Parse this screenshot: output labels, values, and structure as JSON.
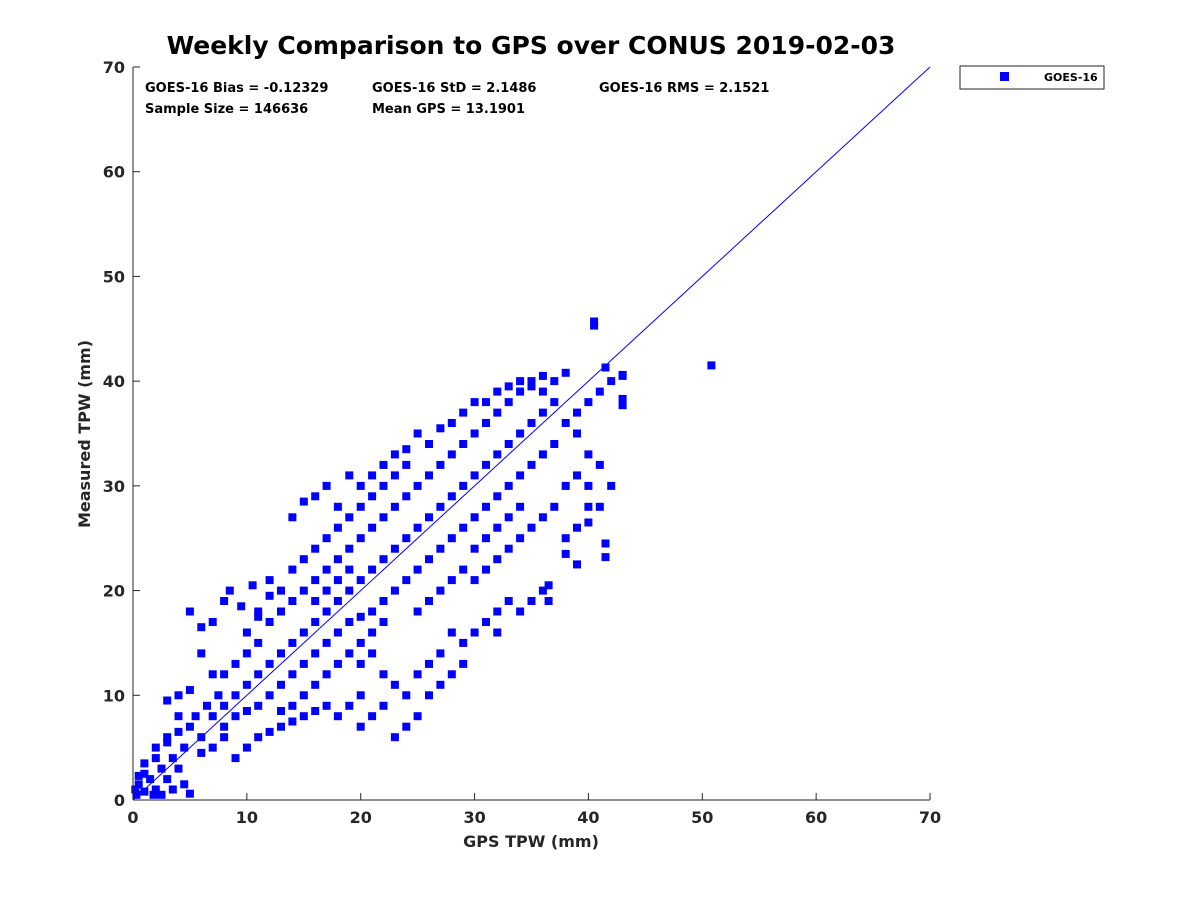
{
  "chart_data": {
    "type": "scatter",
    "title": "Weekly Comparison to GPS over CONUS 2019-02-03",
    "xlabel": "GPS TPW (mm)",
    "ylabel": "Measured TPW (mm)",
    "xlim": [
      0,
      70
    ],
    "ylim": [
      0,
      70
    ],
    "xticks": [
      "0",
      "10",
      "20",
      "30",
      "40",
      "50",
      "60",
      "70"
    ],
    "yticks": [
      "0",
      "10",
      "20",
      "30",
      "40",
      "50",
      "60",
      "70"
    ],
    "grid": false,
    "legend_position": "outside-top-right",
    "reference_line": {
      "x": [
        0,
        70
      ],
      "y": [
        0,
        70
      ]
    },
    "stats": {
      "bias": "GOES-16 Bias = -0.12329",
      "std": "GOES-16 StD = 2.1486",
      "rms": "GOES-16 RMS = 2.1521",
      "sample_size": "Sample Size = 146636",
      "mean_gps": "Mean GPS = 13.1901"
    },
    "series": [
      {
        "name": "GOES-16",
        "color": "#0000ff",
        "marker": "square",
        "points": [
          [
            0.3,
            0.5
          ],
          [
            0.5,
            1.5
          ],
          [
            1,
            0.8
          ],
          [
            1.5,
            2
          ],
          [
            2,
            1
          ],
          [
            2.5,
            3
          ],
          [
            3,
            2
          ],
          [
            3.5,
            4
          ],
          [
            4,
            3
          ],
          [
            4.5,
            5
          ],
          [
            1,
            2.5
          ],
          [
            2,
            4
          ],
          [
            3,
            5.5
          ],
          [
            4,
            6.5
          ],
          [
            5,
            7
          ],
          [
            5.5,
            8
          ],
          [
            6,
            6
          ],
          [
            6.5,
            9
          ],
          [
            7,
            8
          ],
          [
            7.5,
            10
          ],
          [
            2.5,
            0.5
          ],
          [
            3.5,
            1
          ],
          [
            4.5,
            1.5
          ],
          [
            5,
            0.6
          ],
          [
            3,
            9.5
          ],
          [
            4,
            10
          ],
          [
            5,
            10.5
          ],
          [
            6,
            4.5
          ],
          [
            7,
            5
          ],
          [
            8,
            6
          ],
          [
            8,
            9
          ],
          [
            9,
            10
          ],
          [
            10,
            11
          ],
          [
            11,
            12
          ],
          [
            12,
            13
          ],
          [
            13,
            14
          ],
          [
            14,
            15
          ],
          [
            15,
            16
          ],
          [
            16,
            17
          ],
          [
            17,
            18
          ],
          [
            8,
            12
          ],
          [
            9,
            13
          ],
          [
            10,
            14
          ],
          [
            11,
            15
          ],
          [
            12,
            17
          ],
          [
            13,
            18
          ],
          [
            14,
            19
          ],
          [
            15,
            20
          ],
          [
            16,
            21
          ],
          [
            17,
            22
          ],
          [
            8,
            7
          ],
          [
            9,
            8
          ],
          [
            10,
            8.5
          ],
          [
            11,
            9
          ],
          [
            12,
            10
          ],
          [
            13,
            11
          ],
          [
            14,
            12
          ],
          [
            15,
            13
          ],
          [
            16,
            14
          ],
          [
            17,
            15
          ],
          [
            6,
            16.5
          ],
          [
            7,
            17
          ],
          [
            8,
            19
          ],
          [
            8.5,
            20
          ],
          [
            9.5,
            18.5
          ],
          [
            10.5,
            20.5
          ],
          [
            11,
            17.5
          ],
          [
            12,
            19.5
          ],
          [
            9,
            4
          ],
          [
            10,
            5
          ],
          [
            11,
            6
          ],
          [
            12,
            6.5
          ],
          [
            13,
            7
          ],
          [
            14,
            7.5
          ],
          [
            15,
            8
          ],
          [
            16,
            8.5
          ],
          [
            17,
            9
          ],
          [
            18,
            8
          ],
          [
            19,
            9
          ],
          [
            20,
            10
          ],
          [
            18,
            19
          ],
          [
            19,
            20
          ],
          [
            20,
            21
          ],
          [
            21,
            22
          ],
          [
            22,
            23
          ],
          [
            23,
            24
          ],
          [
            24,
            25
          ],
          [
            25,
            26
          ],
          [
            26,
            27
          ],
          [
            27,
            28
          ],
          [
            18,
            23
          ],
          [
            19,
            24
          ],
          [
            20,
            25
          ],
          [
            21,
            26
          ],
          [
            22,
            27
          ],
          [
            23,
            28
          ],
          [
            24,
            29
          ],
          [
            25,
            30
          ],
          [
            26,
            31
          ],
          [
            27,
            32
          ],
          [
            18,
            16
          ],
          [
            19,
            17
          ],
          [
            20,
            17.5
          ],
          [
            21,
            18
          ],
          [
            22,
            19
          ],
          [
            23,
            20
          ],
          [
            24,
            21
          ],
          [
            25,
            22
          ],
          [
            26,
            23
          ],
          [
            27,
            24
          ],
          [
            14,
            27
          ],
          [
            15,
            28.5
          ],
          [
            16,
            29
          ],
          [
            17,
            30
          ],
          [
            18,
            28
          ],
          [
            19,
            31
          ],
          [
            20,
            30
          ],
          [
            22,
            32
          ],
          [
            23,
            33
          ],
          [
            24,
            32
          ],
          [
            20,
            13
          ],
          [
            21,
            14
          ],
          [
            22,
            12
          ],
          [
            23,
            11
          ],
          [
            24,
            10
          ],
          [
            25,
            12
          ],
          [
            26,
            13
          ],
          [
            27,
            14
          ],
          [
            28,
            16
          ],
          [
            29,
            15
          ],
          [
            20,
            7
          ],
          [
            21,
            8
          ],
          [
            22,
            9
          ],
          [
            23,
            6
          ],
          [
            24,
            7
          ],
          [
            25,
            8
          ],
          [
            26,
            10
          ],
          [
            27,
            11
          ],
          [
            28,
            12
          ],
          [
            29,
            13
          ],
          [
            28,
            29
          ],
          [
            29,
            30
          ],
          [
            30,
            31
          ],
          [
            31,
            32
          ],
          [
            32,
            33
          ],
          [
            33,
            34
          ],
          [
            34,
            35
          ],
          [
            35,
            36
          ],
          [
            36,
            37
          ],
          [
            37,
            38
          ],
          [
            28,
            33
          ],
          [
            29,
            34
          ],
          [
            30,
            35
          ],
          [
            31,
            36
          ],
          [
            32,
            37
          ],
          [
            33,
            38
          ],
          [
            34,
            39
          ],
          [
            35,
            40
          ],
          [
            36,
            39
          ],
          [
            37,
            40
          ],
          [
            28,
            25
          ],
          [
            29,
            26
          ],
          [
            30,
            27
          ],
          [
            31,
            28
          ],
          [
            32,
            29
          ],
          [
            33,
            30
          ],
          [
            34,
            31
          ],
          [
            35,
            32
          ],
          [
            36,
            33
          ],
          [
            37,
            34
          ],
          [
            30,
            21
          ],
          [
            31,
            22
          ],
          [
            32,
            23
          ],
          [
            33,
            24
          ],
          [
            34,
            25
          ],
          [
            35,
            26
          ],
          [
            36,
            27
          ],
          [
            37,
            28
          ],
          [
            38,
            30
          ],
          [
            39,
            31
          ],
          [
            30,
            16
          ],
          [
            31,
            17
          ],
          [
            32,
            18
          ],
          [
            33,
            19
          ],
          [
            34,
            18
          ],
          [
            35,
            19
          ],
          [
            36,
            20
          ],
          [
            36.5,
            19
          ],
          [
            36.5,
            20.5
          ],
          [
            32,
            16
          ],
          [
            38,
            36
          ],
          [
            39,
            37
          ],
          [
            40,
            38
          ],
          [
            41,
            39
          ],
          [
            42,
            40
          ],
          [
            43,
            40.5
          ],
          [
            39,
            35
          ],
          [
            40,
            33
          ],
          [
            41,
            32
          ],
          [
            42,
            30
          ],
          [
            38,
            25
          ],
          [
            39,
            26
          ],
          [
            40,
            28
          ],
          [
            40,
            30
          ],
          [
            41,
            28
          ],
          [
            41.5,
            24.5
          ],
          [
            41.5,
            23.2
          ],
          [
            39,
            22.5
          ],
          [
            40,
            26.5
          ],
          [
            38,
            23.5
          ],
          [
            40.5,
            45.3
          ],
          [
            40.5,
            45.7
          ],
          [
            50.8,
            41.5
          ],
          [
            43,
            37.7
          ],
          [
            43,
            38.3
          ],
          [
            43,
            40.6
          ],
          [
            41.5,
            41.3
          ],
          [
            38,
            40.8
          ],
          [
            36,
            40.5
          ],
          [
            35,
            39.5
          ],
          [
            5,
            18
          ],
          [
            6,
            14
          ],
          [
            7,
            12
          ],
          [
            4,
            8
          ],
          [
            3,
            6
          ],
          [
            2,
            5
          ],
          [
            1,
            3.5
          ],
          [
            0.5,
            2.3
          ],
          [
            0.2,
            1
          ],
          [
            1.8,
            0.5
          ],
          [
            25,
            35
          ],
          [
            26,
            34
          ],
          [
            27,
            35.5
          ],
          [
            28,
            36
          ],
          [
            29,
            37
          ],
          [
            30,
            38
          ],
          [
            31,
            38
          ],
          [
            32,
            39
          ],
          [
            33,
            39.5
          ],
          [
            34,
            40
          ],
          [
            16,
            24
          ],
          [
            17,
            25
          ],
          [
            18,
            26
          ],
          [
            19,
            27
          ],
          [
            20,
            28
          ],
          [
            21,
            29
          ],
          [
            22,
            30
          ],
          [
            23,
            31
          ],
          [
            24,
            33.5
          ],
          [
            21,
            31
          ],
          [
            13,
            8.5
          ],
          [
            14,
            9
          ],
          [
            15,
            10
          ],
          [
            16,
            11
          ],
          [
            17,
            12
          ],
          [
            18,
            13
          ],
          [
            19,
            14
          ],
          [
            20,
            15
          ],
          [
            21,
            16
          ],
          [
            22,
            17
          ],
          [
            10,
            16
          ],
          [
            11,
            18
          ],
          [
            12,
            21
          ],
          [
            13,
            20
          ],
          [
            14,
            22
          ],
          [
            15,
            23
          ],
          [
            16,
            19
          ],
          [
            17,
            20
          ],
          [
            18,
            21
          ],
          [
            19,
            22
          ],
          [
            25,
            18
          ],
          [
            26,
            19
          ],
          [
            27,
            20
          ],
          [
            28,
            21
          ],
          [
            29,
            22
          ],
          [
            30,
            24
          ],
          [
            31,
            25
          ],
          [
            32,
            26
          ],
          [
            33,
            27
          ],
          [
            34,
            28
          ]
        ]
      }
    ]
  }
}
